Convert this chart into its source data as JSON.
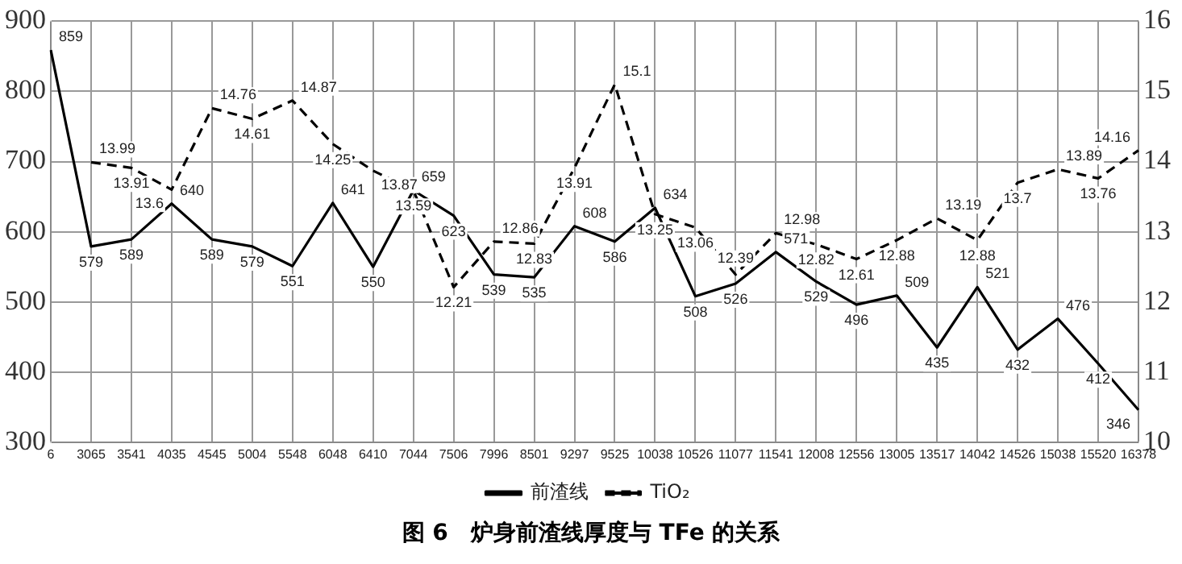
{
  "chart_data": {
    "type": "line",
    "title": "图 6　炉身前渣线厚度与 TFe 的关系",
    "categories": [
      "6",
      "3065",
      "3541",
      "4035",
      "4545",
      "5004",
      "5548",
      "6048",
      "6410",
      "7044",
      "7506",
      "7996",
      "8501",
      "9297",
      "9525",
      "10038",
      "10526",
      "11077",
      "11541",
      "12008",
      "12556",
      "13005",
      "13517",
      "14042",
      "14526",
      "15038",
      "15520",
      "16378"
    ],
    "series": [
      {
        "name": "前渣线",
        "color": "#000000",
        "line_style": "solid",
        "values": [
          859,
          579,
          589,
          640,
          589,
          579,
          551,
          641,
          550,
          659,
          623,
          539,
          535,
          608,
          586,
          634,
          508,
          526,
          571,
          529,
          496,
          509,
          435,
          521,
          432,
          476,
          412,
          346
        ]
      },
      {
        "name": "TiO₂",
        "color": "#000000",
        "line_style": "dashed",
        "axis": "y2",
        "values": [
          null,
          13.99,
          13.91,
          13.6,
          14.76,
          14.61,
          14.87,
          14.25,
          13.87,
          13.59,
          12.21,
          12.86,
          12.83,
          13.91,
          15.1,
          13.25,
          13.06,
          12.39,
          12.98,
          12.82,
          12.61,
          12.88,
          13.19,
          12.88,
          13.7,
          13.89,
          13.76,
          14.16
        ]
      }
    ],
    "ylim": [
      300,
      900
    ],
    "yticks": [
      300,
      400,
      500,
      600,
      700,
      800,
      900
    ],
    "y2lim": [
      10,
      16
    ],
    "y2ticks": [
      10,
      11,
      12,
      13,
      14,
      15,
      16
    ],
    "grid": true,
    "legend": "bottom",
    "marker": "none",
    "data_labels": true
  }
}
